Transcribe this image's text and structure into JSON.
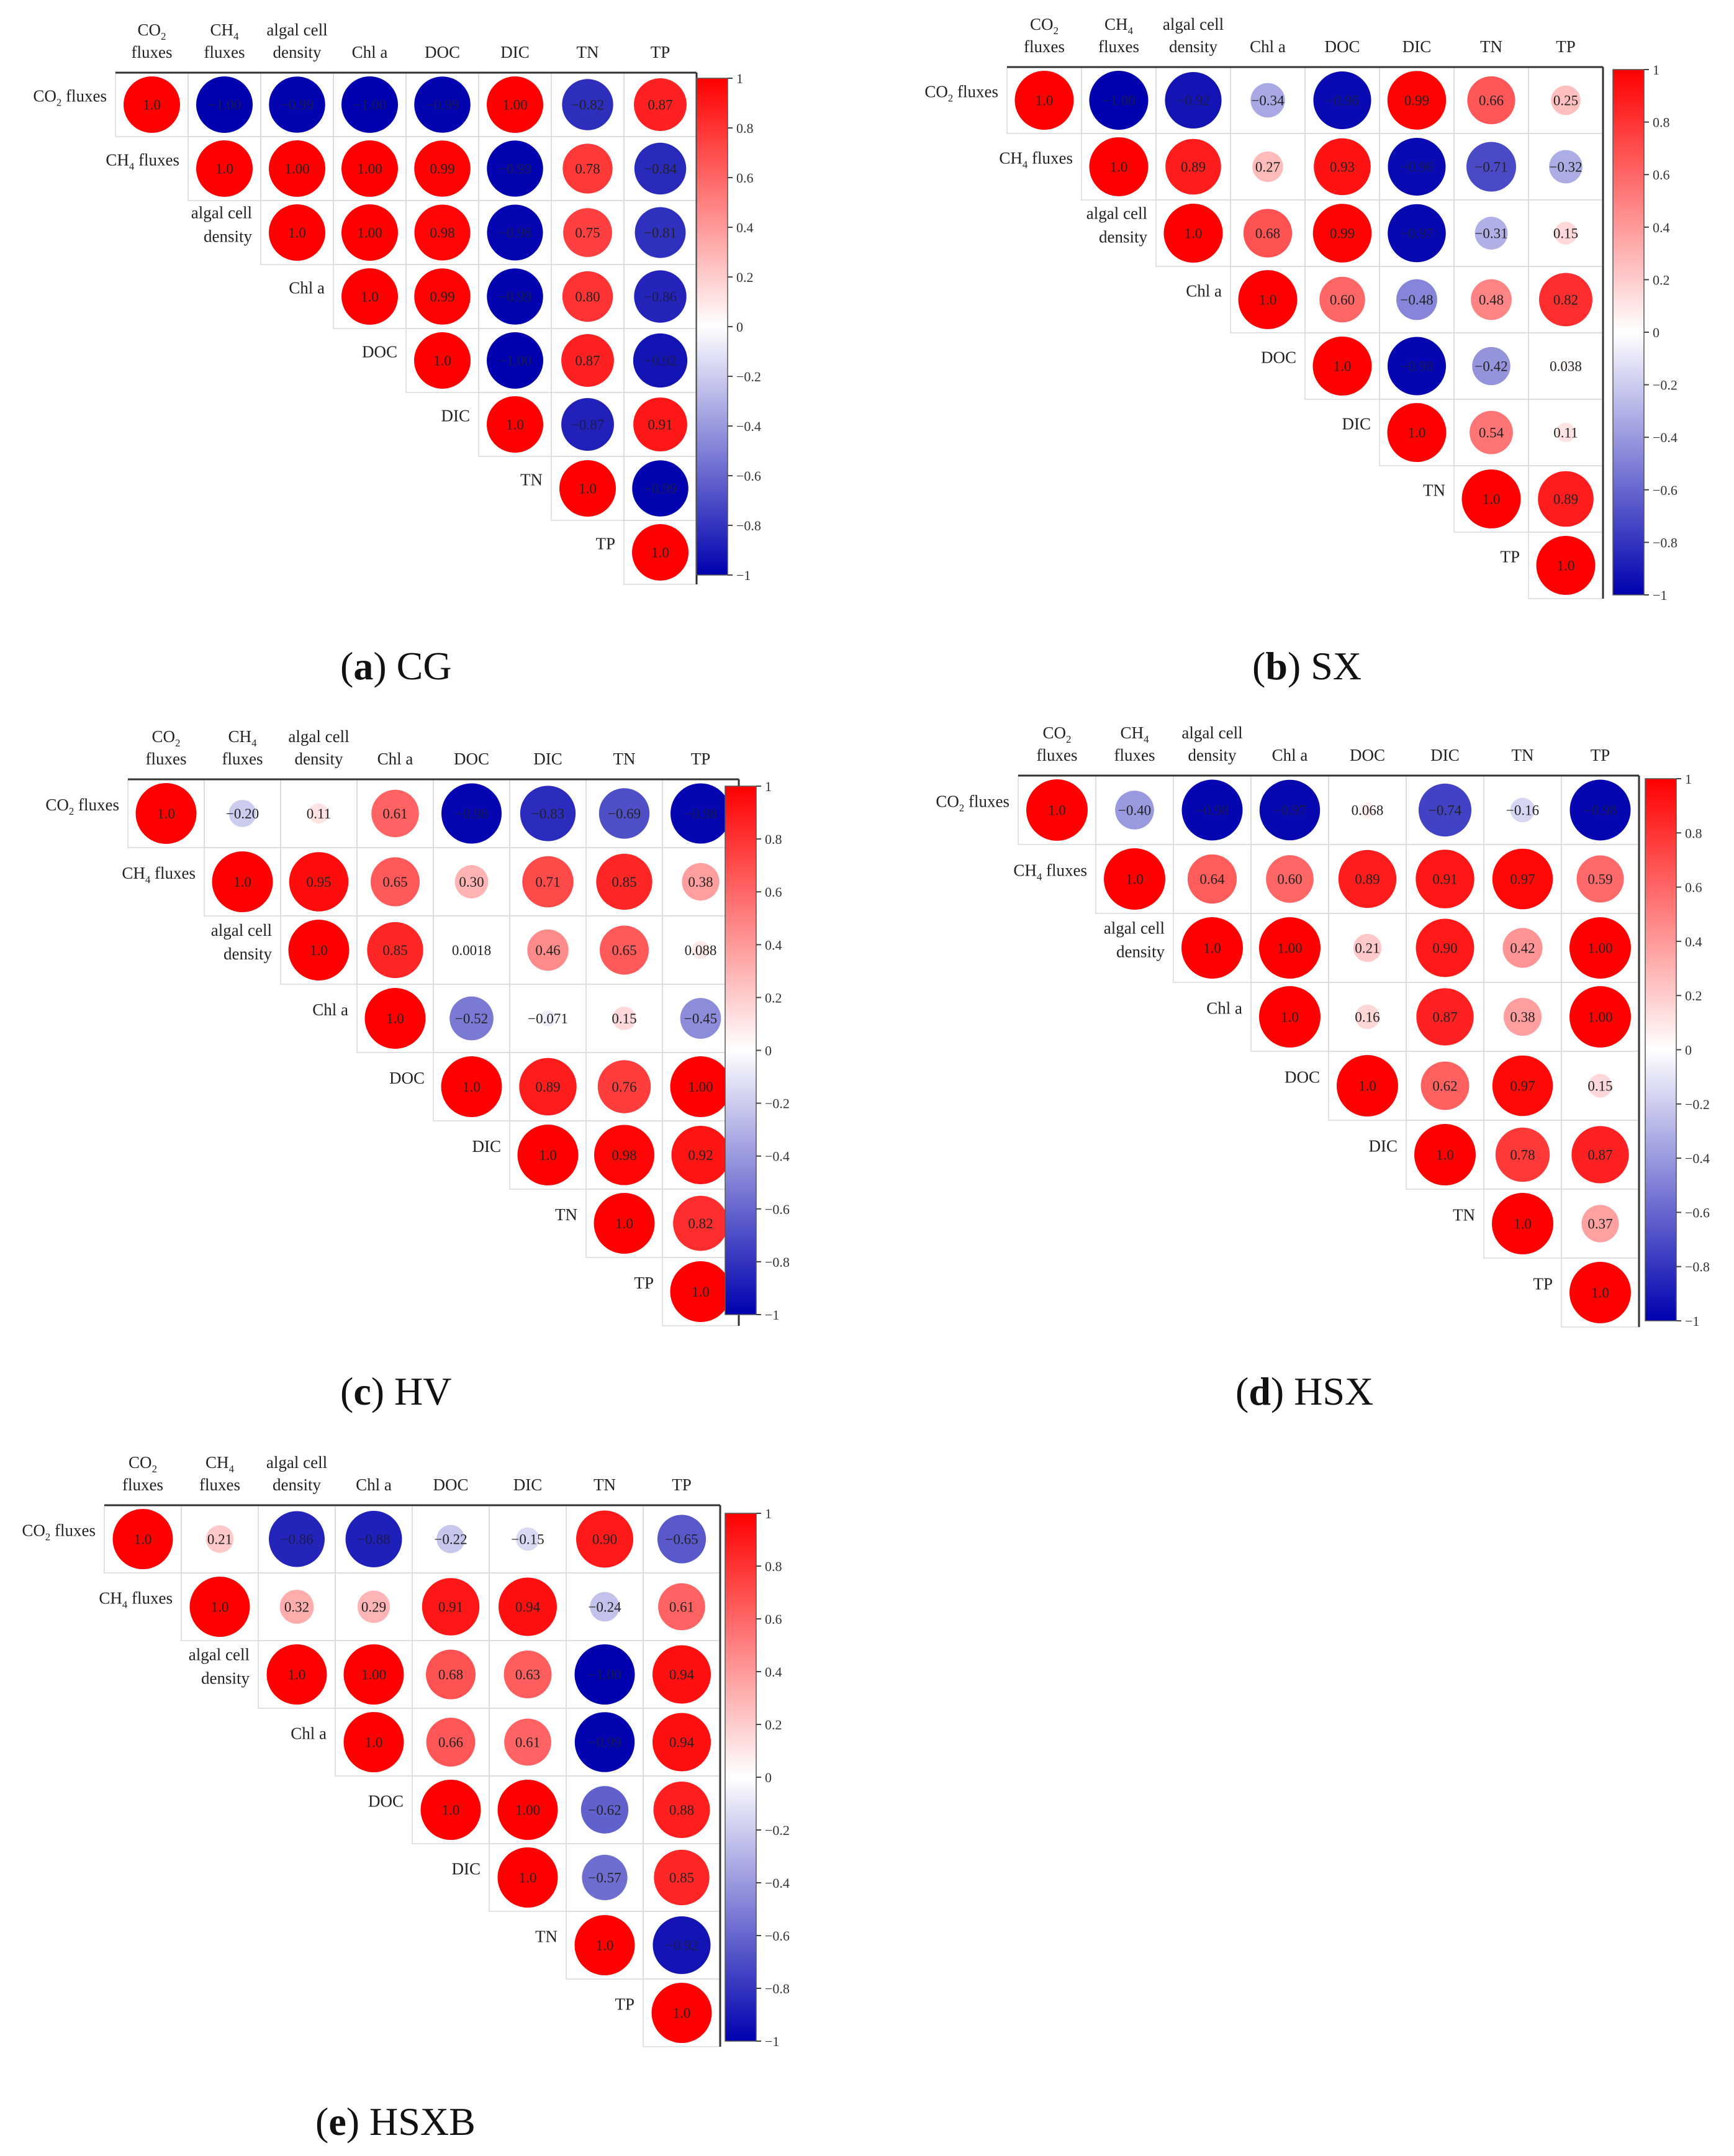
{
  "chart_data": [
    {
      "type": "heatmap",
      "panel_letter": "a",
      "panel_name": "CG",
      "variables": [
        "CO2 fluxes",
        "CH4 fluxes",
        "algal cell density",
        "Chl a",
        "DOC",
        "DIC",
        "TN",
        "TP"
      ],
      "matrix": [
        [
          "1.0",
          "-1.00",
          "-0.99",
          "-1.00",
          "-0.99",
          "1.00",
          "-0.82",
          "0.87"
        ],
        [
          null,
          "1.0",
          "1.00",
          "1.00",
          "0.99",
          "-0.99",
          "0.78",
          "-0.84"
        ],
        [
          null,
          null,
          "1.0",
          "1.00",
          "0.98",
          "-0.98",
          "0.75",
          "-0.81"
        ],
        [
          null,
          null,
          null,
          "1.0",
          "0.99",
          "-0.99",
          "0.80",
          "-0.86"
        ],
        [
          null,
          null,
          null,
          null,
          "1.0",
          "-1.00",
          "0.87",
          "-0.92"
        ],
        [
          null,
          null,
          null,
          null,
          null,
          "1.0",
          "-0.87",
          "0.91"
        ],
        [
          null,
          null,
          null,
          null,
          null,
          null,
          "1.0",
          "-0.99"
        ],
        [
          null,
          null,
          null,
          null,
          null,
          null,
          null,
          "1.0"
        ]
      ],
      "colorbar": {
        "ticks": [
          "1",
          "0.8",
          "0.6",
          "0.4",
          "0.2",
          "0",
          "−0.2",
          "−0.4",
          "−0.6",
          "−0.8",
          "−1"
        ],
        "range": [
          -1,
          1
        ]
      }
    },
    {
      "type": "heatmap",
      "panel_letter": "b",
      "panel_name": "SX",
      "variables": [
        "CO2 fluxes",
        "CH4 fluxes",
        "algal cell density",
        "Chl a",
        "DOC",
        "DIC",
        "TN",
        "TP"
      ],
      "matrix": [
        [
          "1.0",
          "-1.00",
          "-0.92",
          "-0.34",
          "-0.96",
          "0.99",
          "0.66",
          "0.25"
        ],
        [
          null,
          "1.0",
          "0.89",
          "0.27",
          "0.93",
          "-0.96",
          "-0.71",
          "-0.32"
        ],
        [
          null,
          null,
          "1.0",
          "0.68",
          "0.99",
          "-0.97",
          "-0.31",
          "0.15"
        ],
        [
          null,
          null,
          null,
          "1.0",
          "0.60",
          "-0.48",
          "0.48",
          "0.82"
        ],
        [
          null,
          null,
          null,
          null,
          "1.0",
          "-0.98",
          "-0.42",
          "0.038"
        ],
        [
          null,
          null,
          null,
          null,
          null,
          "1.0",
          "0.54",
          "0.11"
        ],
        [
          null,
          null,
          null,
          null,
          null,
          null,
          "1.0",
          "0.89"
        ],
        [
          null,
          null,
          null,
          null,
          null,
          null,
          null,
          "1.0"
        ]
      ],
      "colorbar": {
        "ticks": [
          "1",
          "0.8",
          "0.6",
          "0.4",
          "0.2",
          "0",
          "−0.2",
          "−0.4",
          "−0.6",
          "−0.8",
          "−1"
        ],
        "range": [
          -1,
          1
        ]
      }
    },
    {
      "type": "heatmap",
      "panel_letter": "c",
      "panel_name": "HV",
      "variables": [
        "CO2 fluxes",
        "CH4 fluxes",
        "algal cell density",
        "Chl a",
        "DOC",
        "DIC",
        "TN",
        "TP"
      ],
      "matrix": [
        [
          "1.0",
          "-0.20",
          "0.11",
          "0.61",
          "-0.98",
          "-0.83",
          "-0.69",
          "-0.98"
        ],
        [
          null,
          "1.0",
          "0.95",
          "0.65",
          "0.30",
          "0.71",
          "0.85",
          "0.38"
        ],
        [
          null,
          null,
          "1.0",
          "0.85",
          "0.0018",
          "0.46",
          "0.65",
          "0.088"
        ],
        [
          null,
          null,
          null,
          "1.0",
          "-0.52",
          "-0.071",
          "0.15",
          "-0.45"
        ],
        [
          null,
          null,
          null,
          null,
          "1.0",
          "0.89",
          "0.76",
          "1.00"
        ],
        [
          null,
          null,
          null,
          null,
          null,
          "1.0",
          "0.98",
          "0.92"
        ],
        [
          null,
          null,
          null,
          null,
          null,
          null,
          "1.0",
          "0.82"
        ],
        [
          null,
          null,
          null,
          null,
          null,
          null,
          null,
          "1.0"
        ]
      ],
      "colorbar": {
        "ticks": [
          "1",
          "0.8",
          "0.6",
          "0.4",
          "0.2",
          "0",
          "−0.2",
          "−0.4",
          "−0.6",
          "−0.8",
          "−1"
        ],
        "range": [
          -1,
          1
        ]
      }
    },
    {
      "type": "heatmap",
      "panel_letter": "d",
      "panel_name": "HSX",
      "variables": [
        "CO2 fluxes",
        "CH4 fluxes",
        "algal cell density",
        "Chl a",
        "DOC",
        "DIC",
        "TN",
        "TP"
      ],
      "matrix": [
        [
          "1.0",
          "-0.40",
          "-0.98",
          "-0.97",
          "0.068",
          "-0.74",
          "-0.16",
          "-0.98"
        ],
        [
          null,
          "1.0",
          "0.64",
          "0.60",
          "0.89",
          "0.91",
          "0.97",
          "0.59"
        ],
        [
          null,
          null,
          "1.0",
          "1.00",
          "0.21",
          "0.90",
          "0.42",
          "1.00"
        ],
        [
          null,
          null,
          null,
          "1.0",
          "0.16",
          "0.87",
          "0.38",
          "1.00"
        ],
        [
          null,
          null,
          null,
          null,
          "1.0",
          "0.62",
          "0.97",
          "0.15"
        ],
        [
          null,
          null,
          null,
          null,
          null,
          "1.0",
          "0.78",
          "0.87"
        ],
        [
          null,
          null,
          null,
          null,
          null,
          null,
          "1.0",
          "0.37"
        ],
        [
          null,
          null,
          null,
          null,
          null,
          null,
          null,
          "1.0"
        ]
      ],
      "colorbar": {
        "ticks": [
          "1",
          "0.8",
          "0.6",
          "0.4",
          "0.2",
          "0",
          "−0.2",
          "−0.4",
          "−0.6",
          "−0.8",
          "−1"
        ],
        "range": [
          -1,
          1
        ]
      }
    },
    {
      "type": "heatmap",
      "panel_letter": "e",
      "panel_name": "HSXB",
      "variables": [
        "CO2 fluxes",
        "CH4 fluxes",
        "algal cell density",
        "Chl a",
        "DOC",
        "DIC",
        "TN",
        "TP"
      ],
      "matrix": [
        [
          "1.0",
          "0.21",
          "-0.86",
          "-0.88",
          "-0.22",
          "-0.15",
          "0.90",
          "-0.65"
        ],
        [
          null,
          "1.0",
          "0.32",
          "0.29",
          "0.91",
          "0.94",
          "-0.24",
          "0.61"
        ],
        [
          null,
          null,
          "1.0",
          "1.00",
          "0.68",
          "0.63",
          "-1.00",
          "0.94"
        ],
        [
          null,
          null,
          null,
          "1.0",
          "0.66",
          "0.61",
          "-0.99",
          "0.94"
        ],
        [
          null,
          null,
          null,
          null,
          "1.0",
          "1.00",
          "-0.62",
          "0.88"
        ],
        [
          null,
          null,
          null,
          null,
          null,
          "1.0",
          "-0.57",
          "0.85"
        ],
        [
          null,
          null,
          null,
          null,
          null,
          null,
          "1.0",
          "-0.92"
        ],
        [
          null,
          null,
          null,
          null,
          null,
          null,
          null,
          "1.0"
        ]
      ],
      "colorbar": {
        "ticks": [
          "1",
          "0.8",
          "0.6",
          "0.4",
          "0.2",
          "0",
          "−0.2",
          "−0.4",
          "−0.6",
          "−0.8",
          "−1"
        ],
        "range": [
          -1,
          1
        ]
      }
    }
  ]
}
